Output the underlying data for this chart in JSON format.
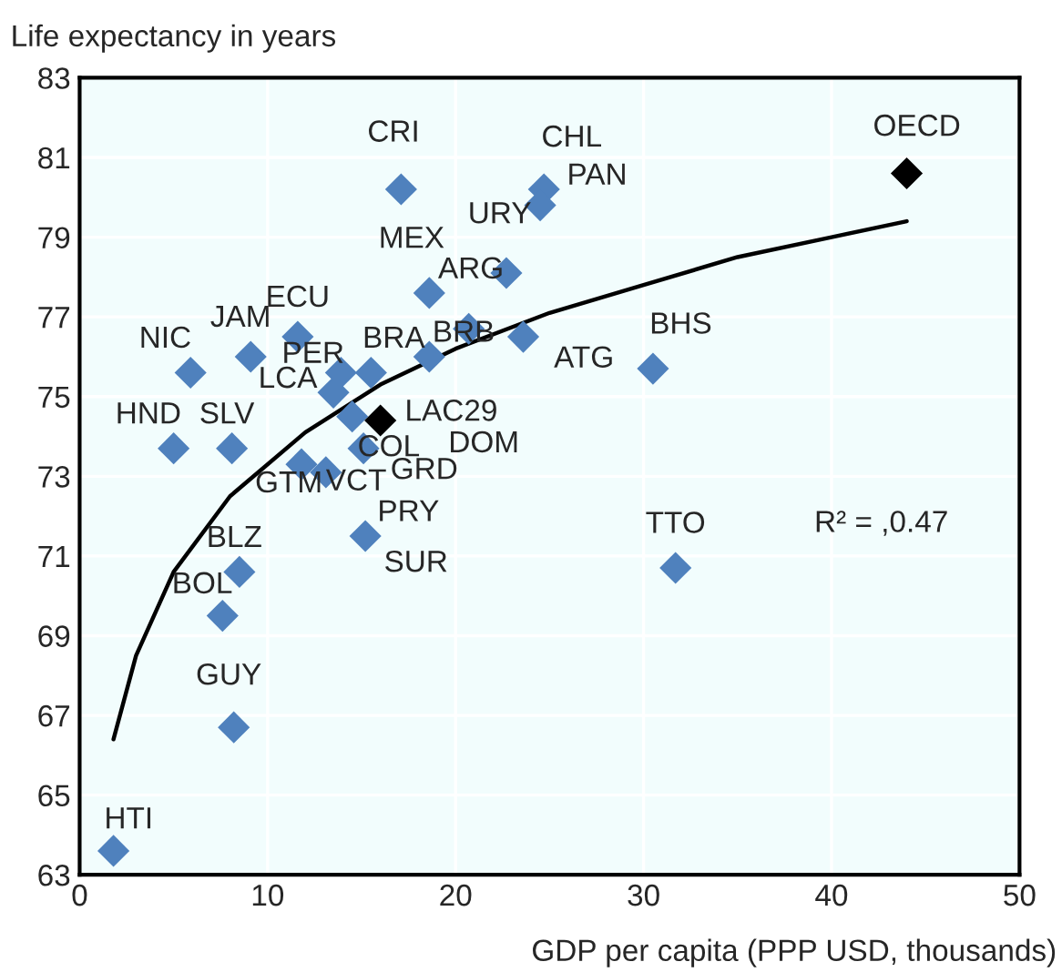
{
  "chart_data": {
    "type": "scatter",
    "xlabel": "GDP per capita (PPP USD, thousands)",
    "ylabel": "Life expectancy in years",
    "xlim": [
      0,
      50
    ],
    "xticks": [
      0,
      10,
      20,
      30,
      40,
      50
    ],
    "ylim": [
      63,
      83
    ],
    "yticks": [
      63,
      65,
      67,
      69,
      71,
      73,
      75,
      77,
      79,
      81,
      83
    ],
    "grid": true,
    "marker": "diamond",
    "series": [
      {
        "color": "#4f81bd",
        "x": [
          1.8,
          8.2,
          7.6,
          8.5,
          5.0,
          8.1,
          5.9,
          9.1,
          11.6,
          13.5,
          13.9,
          15.5,
          14.5,
          15.1,
          11.8,
          13.1,
          15.2,
          18.6,
          17.1,
          24.7,
          24.5,
          22.7,
          20.7,
          18.6,
          23.6,
          30.5,
          31.7
        ],
        "values": [
          63.6,
          66.7,
          69.5,
          70.6,
          73.7,
          73.7,
          75.6,
          76.0,
          76.5,
          75.1,
          75.6,
          75.6,
          74.5,
          73.7,
          73.3,
          73.1,
          71.5,
          77.6,
          80.2,
          80.2,
          79.8,
          78.1,
          76.7,
          76.0,
          76.5,
          75.7,
          70.7
        ]
      },
      {
        "color": "#000000",
        "x": [
          16.0,
          44.0
        ],
        "values": [
          74.4,
          80.6
        ]
      },
      {
        "type": "line",
        "color": "#000000",
        "marker": "none",
        "x": [
          1.8,
          3,
          5,
          8,
          12,
          16,
          20,
          25,
          30,
          35,
          40,
          44
        ],
        "values": [
          66.4,
          68.5,
          70.6,
          72.5,
          74.1,
          75.3,
          76.2,
          77.1,
          77.8,
          78.5,
          79.0,
          79.4
        ]
      }
    ],
    "annotations": [
      {
        "text": "HTI",
        "x": 1.8,
        "y": 63.6
      },
      {
        "text": "GUY",
        "x": 8.2,
        "y": 66.7
      },
      {
        "text": "BOL",
        "x": 7.6,
        "y": 69.5
      },
      {
        "text": "BLZ",
        "x": 8.5,
        "y": 70.6
      },
      {
        "text": "HND",
        "x": 5.0,
        "y": 73.7
      },
      {
        "text": "SLV",
        "x": 8.1,
        "y": 73.7
      },
      {
        "text": "NIC",
        "x": 5.9,
        "y": 75.6
      },
      {
        "text": "JAM",
        "x": 9.1,
        "y": 76.0
      },
      {
        "text": "ECU",
        "x": 11.6,
        "y": 76.5
      },
      {
        "text": "LCA",
        "x": 13.5,
        "y": 75.1
      },
      {
        "text": "PER",
        "x": 13.9,
        "y": 75.6
      },
      {
        "text": "BRA",
        "x": 15.5,
        "y": 75.6
      },
      {
        "text": "COL",
        "x": 15.1,
        "y": 73.7
      },
      {
        "text": "GTM",
        "x": 11.8,
        "y": 73.3
      },
      {
        "text": "VCT",
        "x": 13.1,
        "y": 73.1
      },
      {
        "text": "GRD",
        "x": 15.1,
        "y": 73.7
      },
      "DOM",
      {
        "text": "PRY",
        "x": 15.2,
        "y": 71.5
      },
      {
        "text": "SUR",
        "x": 15.2,
        "y": 71.5
      },
      {
        "text": "MEX",
        "x": 18.6,
        "y": 77.6
      },
      {
        "text": "CRI",
        "x": 17.1,
        "y": 80.2
      },
      {
        "text": "CHL",
        "x": 24.7,
        "y": 80.2
      },
      {
        "text": "PAN",
        "x": 24.7,
        "y": 80.2
      },
      {
        "text": "URY",
        "x": 24.5,
        "y": 79.8
      },
      {
        "text": "ARG",
        "x": 22.7,
        "y": 78.1
      },
      {
        "text": "BRB",
        "x": 20.7,
        "y": 76.7
      },
      {
        "text": "ATG",
        "x": 23.6,
        "y": 76.5
      },
      {
        "text": "BHS",
        "x": 30.5,
        "y": 75.7
      },
      {
        "text": "TTO",
        "x": 31.7,
        "y": 70.7
      },
      {
        "text": "LAC29",
        "x": 16.0,
        "y": 74.4
      },
      {
        "text": "OECD",
        "x": 44.0,
        "y": 80.6
      },
      "R² = ,0.47"
    ]
  }
}
